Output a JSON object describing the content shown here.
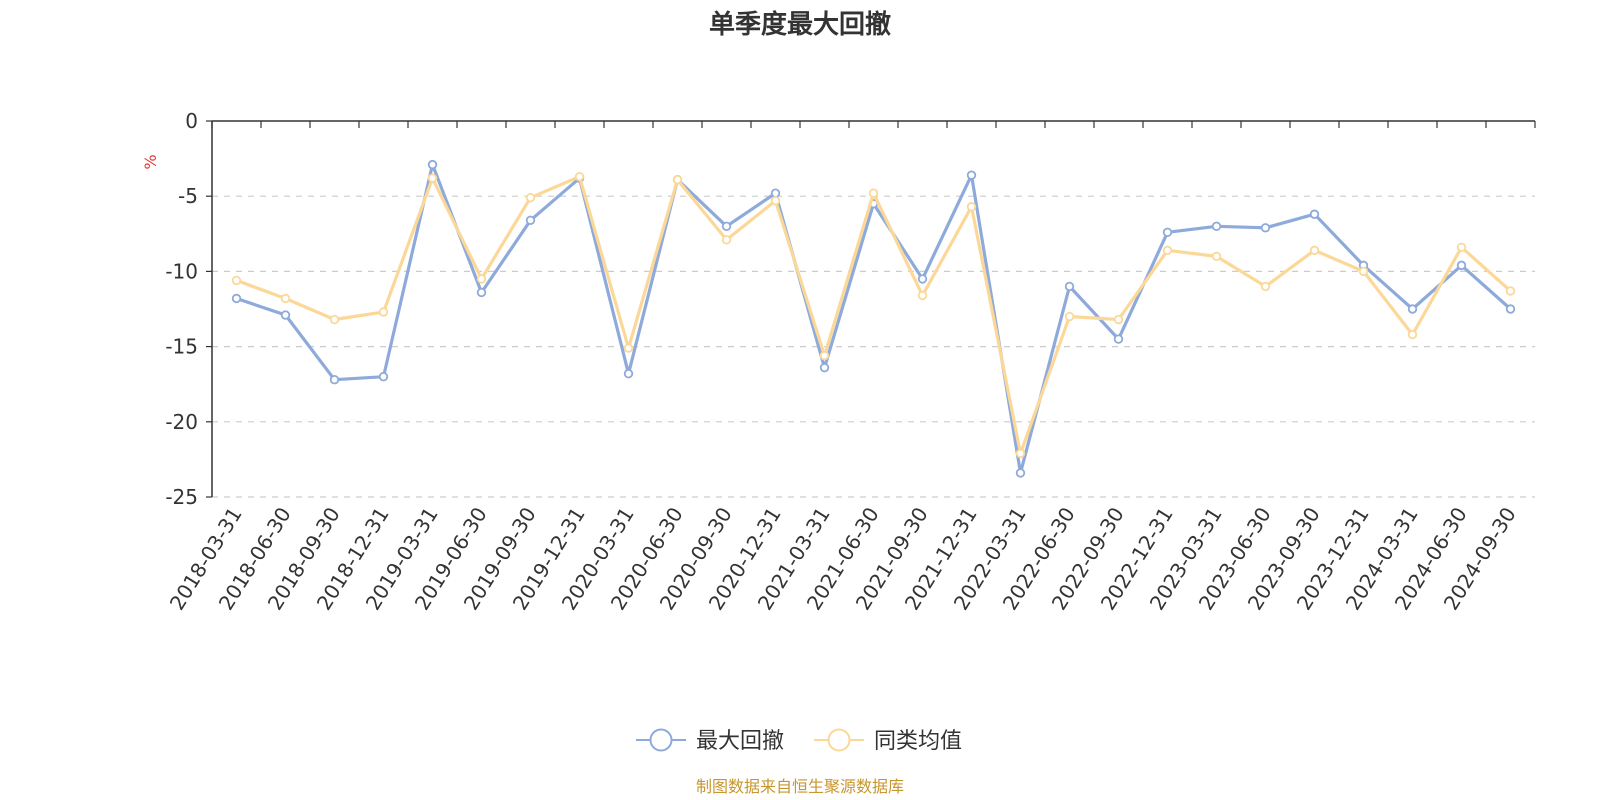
{
  "chart_data": {
    "type": "line",
    "title": "单季度最大回撤",
    "ylabel": "%",
    "xlabel": "",
    "ylim": [
      -25,
      0
    ],
    "yticks": [
      0,
      -5,
      -10,
      -15,
      -20,
      -25
    ],
    "grid": true,
    "legend_position": "bottom-center",
    "categories": [
      "2018-03-31",
      "2018-06-30",
      "2018-09-30",
      "2018-12-31",
      "2019-03-31",
      "2019-06-30",
      "2019-09-30",
      "2019-12-31",
      "2020-03-31",
      "2020-06-30",
      "2020-09-30",
      "2020-12-31",
      "2021-03-31",
      "2021-06-30",
      "2021-09-30",
      "2021-12-31",
      "2022-03-31",
      "2022-06-30",
      "2022-09-30",
      "2022-12-31",
      "2023-03-31",
      "2023-06-30",
      "2023-09-30",
      "2023-12-31",
      "2024-03-31",
      "2024-06-30",
      "2024-09-30"
    ],
    "series": [
      {
        "name": "最大回撤",
        "color": "#8eaadb",
        "values": [
          -11.8,
          -12.9,
          -17.2,
          -17.0,
          -2.9,
          -11.4,
          -6.6,
          -3.8,
          -16.8,
          -3.9,
          -7.0,
          -4.8,
          -16.4,
          -5.5,
          -10.5,
          -3.6,
          -23.4,
          -11.0,
          -14.5,
          -7.4,
          -7.0,
          -7.1,
          -6.2,
          -9.6,
          -12.5,
          -9.6,
          -12.5
        ]
      },
      {
        "name": "同类均值",
        "color": "#fcd898",
        "values": [
          -10.6,
          -11.8,
          -13.2,
          -12.7,
          -3.8,
          -10.5,
          -5.1,
          -3.7,
          -15.1,
          -3.9,
          -7.9,
          -5.3,
          -15.6,
          -4.8,
          -11.6,
          -5.7,
          -22.1,
          -13.0,
          -13.2,
          -8.6,
          -9.0,
          -11.0,
          -8.6,
          -10.0,
          -14.2,
          -8.4,
          -11.3
        ]
      }
    ],
    "source": "制图数据来自恒生聚源数据库"
  }
}
